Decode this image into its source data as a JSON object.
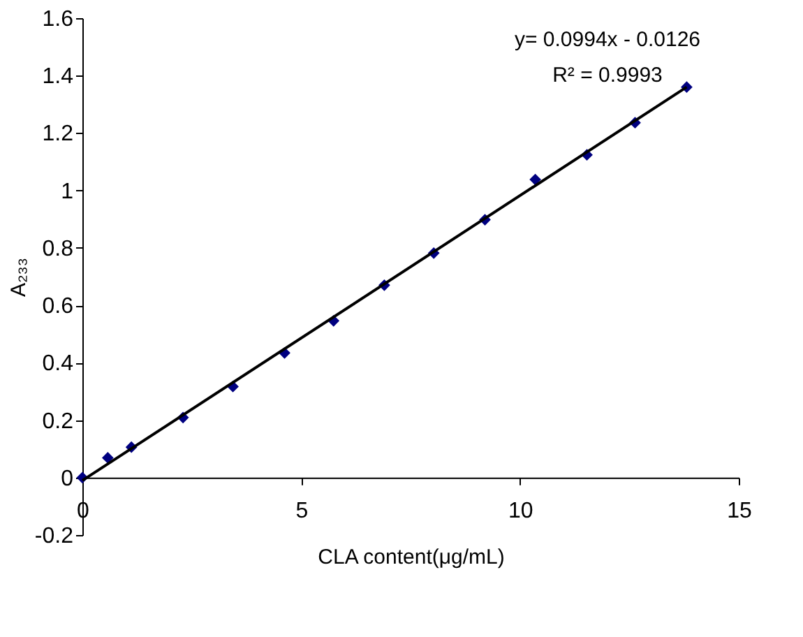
{
  "chart_data": {
    "type": "scatter",
    "xlabel": "CLA content(μg/mL)",
    "ylabel": "A₂₃₃",
    "x": [
      0,
      0.58,
      1.12,
      2.3,
      3.44,
      4.62,
      5.74,
      6.9,
      8.03,
      9.2,
      10.35,
      11.53,
      12.63,
      13.81
    ],
    "series": [
      {
        "color": "#000080",
        "marker": "diamond",
        "values": [
          0,
          0.069,
          0.106,
          0.209,
          0.317,
          0.434,
          0.546,
          0.67,
          0.782,
          0.898,
          1.038,
          1.124,
          1.236,
          1.36
        ]
      },
      {
        "type": "line",
        "color": "#000000",
        "line_style": "solid",
        "x": [
          0,
          13.81
        ],
        "values": [
          -0.01,
          1.36
        ]
      }
    ],
    "xlim": [
      0,
      15
    ],
    "xticks": [
      0,
      5,
      10,
      15
    ],
    "ylim": [
      -0.2,
      1.6
    ],
    "yticks": [
      -0.2,
      0,
      0.2,
      0.4,
      0.6,
      0.8,
      1,
      1.2,
      1.4,
      1.6
    ],
    "annotations": [
      "y= 0.0994x - 0.0126",
      "R² = 0.9993"
    ],
    "grid": false
  }
}
